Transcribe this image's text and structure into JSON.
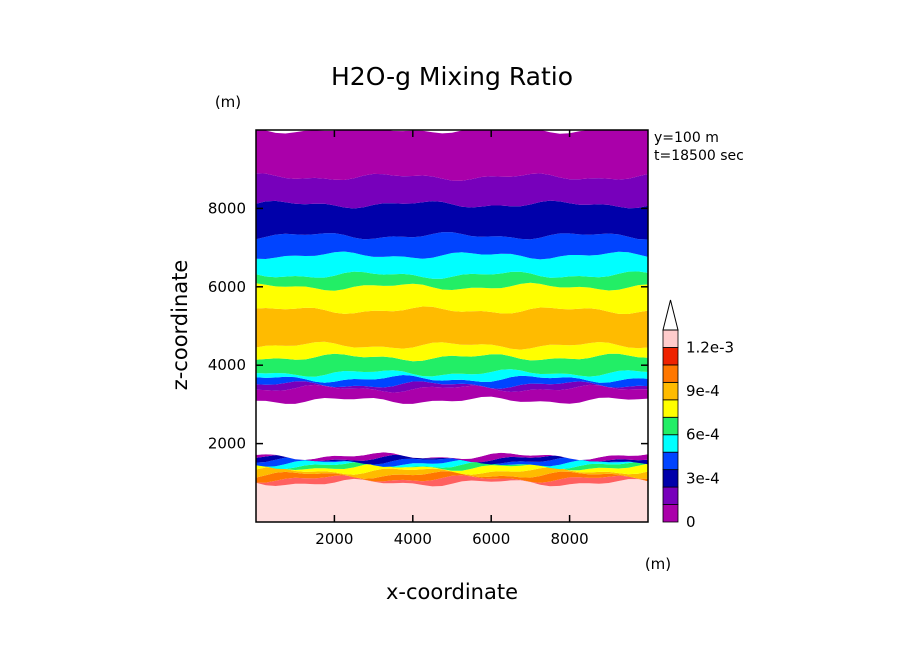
{
  "chart_data": {
    "type": "heatmap",
    "title": "H2O-g Mixing Ratio",
    "xlabel": "x-coordinate",
    "ylabel": "z-coordinate",
    "x_unit": "(m)",
    "y_unit": "(m)",
    "xlim": [
      0,
      10000
    ],
    "ylim": [
      0,
      10000
    ],
    "x_ticks": [
      2000,
      4000,
      6000,
      8000
    ],
    "y_ticks": [
      2000,
      4000,
      6000,
      8000
    ],
    "x_tick_labels": [
      "2000",
      "4000",
      "6000",
      "8000"
    ],
    "y_tick_labels": [
      "2000",
      "4000",
      "6000",
      "8000"
    ],
    "annotations": [
      "y=100 m",
      "t=18500 sec"
    ],
    "colorbar": {
      "levels": [
        0,
        0.00015,
        0.0003,
        0.00045,
        0.0006,
        0.00075,
        0.0009,
        0.00105,
        0.0012
      ],
      "tick_values": [
        0,
        0.0003,
        0.0006,
        0.0009,
        0.0012
      ],
      "tick_labels": [
        "0",
        "3e-4",
        "6e-4",
        "9e-4",
        "1.2e-3"
      ],
      "colors": [
        "#aa00aa",
        "#7700bb",
        "#0000aa",
        "#0044ff",
        "#00ffff",
        "#22ee66",
        "#ffff00",
        "#ffbb00",
        "#ff7700",
        "#ee2200",
        "#ffcccc"
      ],
      "extend": "max"
    },
    "bands": [
      {
        "z0": 0,
        "z1": 1000,
        "value": 0.0013,
        "color": "#ffdddd"
      },
      {
        "z0": 1000,
        "z1": 1100,
        "value": 0.00115,
        "color": "#ff6060"
      },
      {
        "z0": 1100,
        "z1": 1200,
        "value": 0.001,
        "color": "#ff7700"
      },
      {
        "z0": 1200,
        "z1": 1300,
        "value": 0.0009,
        "color": "#ffbb00"
      },
      {
        "z0": 1300,
        "z1": 1400,
        "value": 0.0008,
        "color": "#ffff00"
      },
      {
        "z0": 1400,
        "z1": 1450,
        "value": 0.00065,
        "color": "#22ee66"
      },
      {
        "z0": 1450,
        "z1": 1500,
        "value": 0.0005,
        "color": "#00ffff"
      },
      {
        "z0": 1500,
        "z1": 1560,
        "value": 0.00035,
        "color": "#0044ff"
      },
      {
        "z0": 1560,
        "z1": 1620,
        "value": 0.0002,
        "color": "#0000aa"
      },
      {
        "z0": 1620,
        "z1": 1680,
        "value": 0.0001,
        "color": "#aa00aa"
      },
      {
        "z0": 1680,
        "z1": 3100,
        "value": null,
        "color": "#ffffff"
      },
      {
        "z0": 3100,
        "z1": 3400,
        "value": 0.0001,
        "color": "#aa00aa"
      },
      {
        "z0": 3400,
        "z1": 3500,
        "value": 0.0002,
        "color": "#7700bb"
      },
      {
        "z0": 3500,
        "z1": 3650,
        "value": 0.0004,
        "color": "#0044ff"
      },
      {
        "z0": 3650,
        "z1": 3800,
        "value": 0.0005,
        "color": "#00ffff"
      },
      {
        "z0": 3800,
        "z1": 4200,
        "value": 0.0007,
        "color": "#22ee66"
      },
      {
        "z0": 4200,
        "z1": 4500,
        "value": 0.0008,
        "color": "#ffff00"
      },
      {
        "z0": 4500,
        "z1": 5400,
        "value": 0.0009,
        "color": "#ffbb00"
      },
      {
        "z0": 5400,
        "z1": 6000,
        "value": 0.0008,
        "color": "#ffff00"
      },
      {
        "z0": 6000,
        "z1": 6300,
        "value": 0.00065,
        "color": "#22ee66"
      },
      {
        "z0": 6300,
        "z1": 6800,
        "value": 0.0005,
        "color": "#00ffff"
      },
      {
        "z0": 6800,
        "z1": 7300,
        "value": 0.00035,
        "color": "#0044ff"
      },
      {
        "z0": 7300,
        "z1": 8100,
        "value": 0.0002,
        "color": "#0000aa"
      },
      {
        "z0": 8100,
        "z1": 8800,
        "value": 0.0001,
        "color": "#7700bb"
      },
      {
        "z0": 8800,
        "z1": 10000,
        "value": 5e-05,
        "color": "#aa00aa"
      }
    ]
  }
}
